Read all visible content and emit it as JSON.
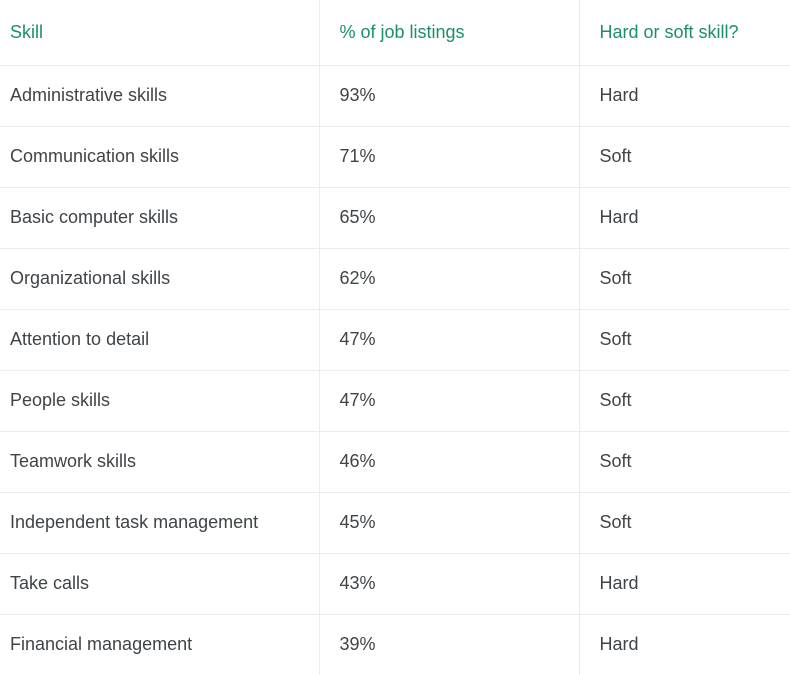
{
  "table": {
    "headers": [
      "Skill",
      "% of job listings",
      "Hard or soft skill?"
    ],
    "rows": [
      [
        "Administrative skills",
        "93%",
        "Hard"
      ],
      [
        "Communication skills",
        "71%",
        "Soft"
      ],
      [
        "Basic computer skills",
        "65%",
        "Hard"
      ],
      [
        "Organizational skills",
        "62%",
        "Soft"
      ],
      [
        "Attention to detail",
        "47%",
        "Soft"
      ],
      [
        "People skills",
        "47%",
        "Soft"
      ],
      [
        "Teamwork skills",
        "46%",
        "Soft"
      ],
      [
        "Independent task management",
        "45%",
        "Soft"
      ],
      [
        "Take calls",
        "43%",
        "Hard"
      ],
      [
        "Financial management",
        "39%",
        "Hard"
      ]
    ]
  },
  "colors": {
    "header_text": "#1b8e6c",
    "body_text": "#3f4448",
    "grid": "#ececec"
  }
}
